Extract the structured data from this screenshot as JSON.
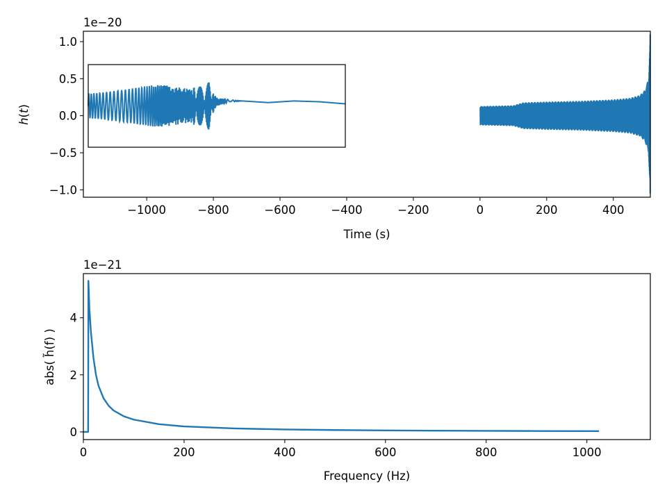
{
  "chart_data": [
    {
      "type": "line",
      "xlabel": "Time (s)",
      "ylabel": "h(t)",
      "offset_text": "1e−20",
      "xlim": [
        -1190,
        511
      ],
      "ylim": [
        -1.1,
        1.14
      ],
      "xticks": [
        -1000,
        -800,
        -600,
        -400,
        -200,
        0,
        200,
        400
      ],
      "xtick_labels": [
        "−1000",
        "−800",
        "−600",
        "−400",
        "−200",
        "0",
        "200",
        "400"
      ],
      "yticks": [
        -1.0,
        -0.5,
        0.0,
        0.5,
        1.0
      ],
      "ytick_labels": [
        "−1.0",
        "−0.5",
        "0.0",
        "0.5",
        "1.0"
      ],
      "color": "#1f77b4",
      "series": [
        {
          "envelope": {
            "t": [
              0,
              100,
              130,
              200,
              300,
              400,
              450,
              480,
              495,
              505,
              511
            ],
            "amp": [
              0.13,
              0.14,
              0.18,
              0.19,
              0.2,
              0.22,
              0.24,
              0.28,
              0.35,
              0.5,
              1.1
            ]
          }
        }
      ],
      "inset": {
        "description_free": true,
        "x": [
          0,
          0.05,
          0.1,
          0.15,
          0.2,
          0.25,
          0.3,
          0.35,
          0.4,
          0.42,
          0.45,
          0.47,
          0.48,
          0.5,
          0.55,
          0.6,
          0.7,
          0.8,
          0.9,
          1.0
        ],
        "envelope_amp": [
          0.3,
          0.32,
          0.36,
          0.4,
          0.45,
          0.5,
          0.5,
          0.45,
          0.4,
          0.5,
          0.65,
          0.75,
          0.3,
          0.1,
          0.03,
          0.0,
          0.0,
          0.0,
          0.0,
          0.0
        ],
        "baseline": [
          0.0,
          0.0,
          0.0,
          0.0,
          0.0,
          0.0,
          0.0,
          0.0,
          0.0,
          0.0,
          0.0,
          0.0,
          0.05,
          0.1,
          0.12,
          0.12,
          0.08,
          0.12,
          0.1,
          0.05
        ]
      }
    },
    {
      "type": "line",
      "xlabel": "Frequency (Hz)",
      "ylabel": "abs( h̃(f) )",
      "offset_text": "1e−21",
      "xlim": [
        0,
        1126
      ],
      "ylim": [
        -0.27,
        5.55
      ],
      "xticks": [
        0,
        200,
        400,
        600,
        800,
        1000
      ],
      "xtick_labels": [
        "0",
        "200",
        "400",
        "600",
        "800",
        "1000"
      ],
      "yticks": [
        0,
        2,
        4
      ],
      "ytick_labels": [
        "0",
        "2",
        "4"
      ],
      "color": "#1f77b4",
      "series": [
        {
          "x": [
            0,
            9.5,
            10,
            12,
            15,
            20,
            25,
            30,
            40,
            50,
            60,
            80,
            100,
            150,
            200,
            300,
            400,
            500,
            600,
            700,
            800,
            900,
            1000,
            1024
          ],
          "y": [
            0,
            0,
            5.3,
            4.3,
            3.5,
            2.6,
            2.0,
            1.62,
            1.18,
            0.92,
            0.75,
            0.55,
            0.43,
            0.27,
            0.19,
            0.12,
            0.085,
            0.065,
            0.052,
            0.043,
            0.036,
            0.031,
            0.027,
            0.026
          ]
        }
      ]
    }
  ]
}
